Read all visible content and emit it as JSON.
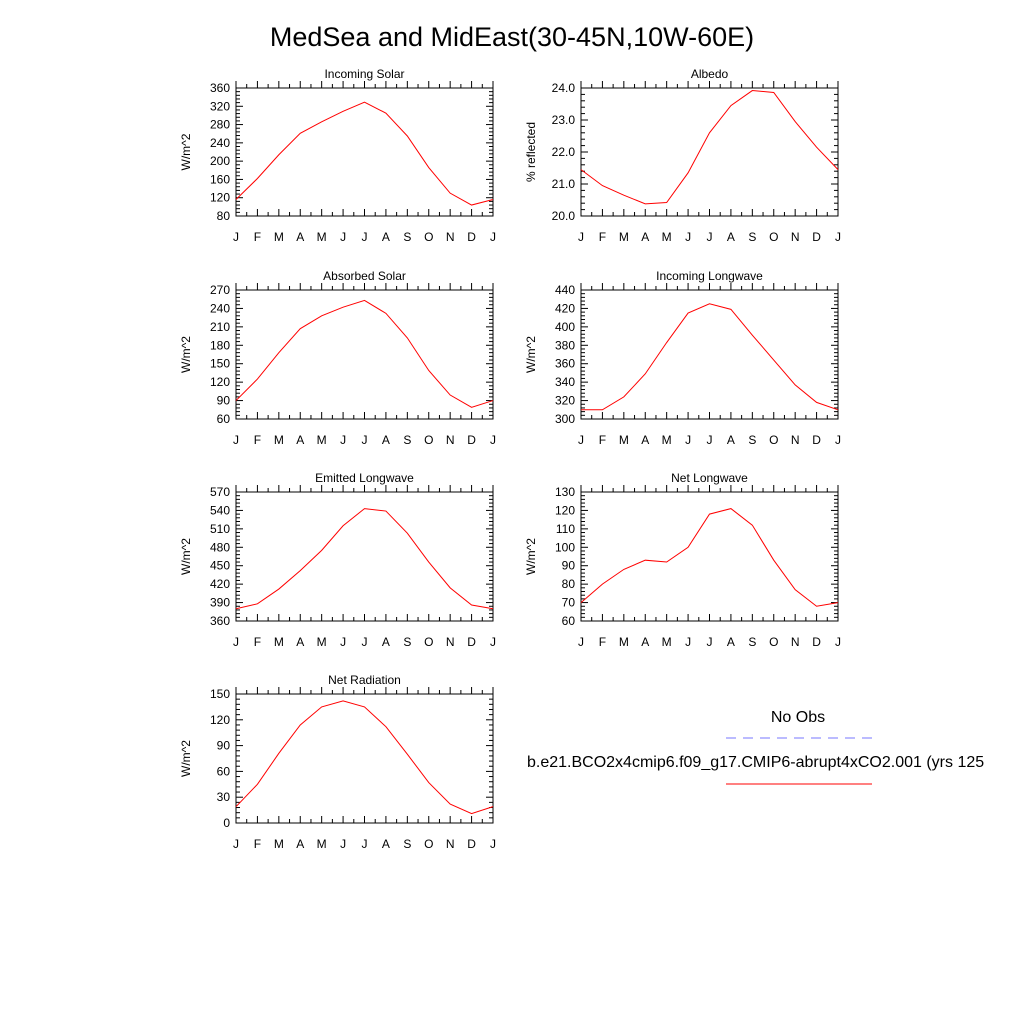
{
  "title": "MedSea and MidEast(30-45N,10W-60E)",
  "month_labels": [
    "J",
    "F",
    "M",
    "A",
    "M",
    "J",
    "J",
    "A",
    "S",
    "O",
    "N",
    "D",
    "J"
  ],
  "colors": {
    "model": "#ff0000",
    "obs": "#7777ff",
    "axis": "#000000"
  },
  "legend": {
    "obs_label": "No Obs",
    "model_label": "b.e21.BCO2x4cmip6.f09_g17.CMIP6-abrupt4xCO2.001 (yrs 125"
  },
  "chart_data": [
    {
      "type": "line",
      "title": "Incoming Solar",
      "ylabel": "W/m^2",
      "ylim": [
        80,
        360
      ],
      "yticks": [
        80,
        120,
        160,
        200,
        240,
        280,
        320,
        360
      ],
      "ytick_labels": [
        "80",
        "120",
        "160",
        "200",
        "240",
        "280",
        "320",
        "360"
      ],
      "x": [
        "J",
        "F",
        "M",
        "A",
        "M",
        "J",
        "J",
        "A",
        "S",
        "O",
        "N",
        "D",
        "J"
      ],
      "series": [
        {
          "values": [
            116,
            162,
            214,
            261,
            286,
            309,
            329,
            305,
            255,
            186,
            130,
            104,
            116
          ]
        }
      ]
    },
    {
      "type": "line",
      "title": "Albedo",
      "ylabel": "% reflected",
      "ylim": [
        20.0,
        24.0
      ],
      "yticks": [
        20.0,
        21.0,
        22.0,
        23.0,
        24.0
      ],
      "ytick_labels": [
        "20.0",
        "21.0",
        "22.0",
        "23.0",
        "24.0"
      ],
      "x": [
        "J",
        "F",
        "M",
        "A",
        "M",
        "J",
        "J",
        "A",
        "S",
        "O",
        "N",
        "D",
        "J"
      ],
      "series": [
        {
          "values": [
            21.45,
            20.95,
            20.65,
            20.38,
            20.42,
            21.35,
            22.6,
            23.45,
            23.92,
            23.86,
            22.95,
            22.15,
            21.45
          ]
        }
      ]
    },
    {
      "type": "line",
      "title": "Absorbed Solar",
      "ylabel": "W/m^2",
      "ylim": [
        60,
        270
      ],
      "yticks": [
        60,
        90,
        120,
        150,
        180,
        210,
        240,
        270
      ],
      "ytick_labels": [
        "60",
        "90",
        "120",
        "150",
        "180",
        "210",
        "240",
        "270"
      ],
      "x": [
        "J",
        "F",
        "M",
        "A",
        "M",
        "J",
        "J",
        "A",
        "S",
        "O",
        "N",
        "D",
        "J"
      ],
      "series": [
        {
          "values": [
            90,
            125,
            168,
            207,
            228,
            242,
            253,
            232,
            192,
            139,
            99,
            79,
            90
          ]
        }
      ]
    },
    {
      "type": "line",
      "title": "Incoming Longwave",
      "ylabel": "W/m^2",
      "ylim": [
        300,
        440
      ],
      "yticks": [
        300,
        320,
        340,
        360,
        380,
        400,
        420,
        440
      ],
      "ytick_labels": [
        "300",
        "320",
        "340",
        "360",
        "380",
        "400",
        "420",
        "440"
      ],
      "x": [
        "J",
        "F",
        "M",
        "A",
        "M",
        "J",
        "J",
        "A",
        "S",
        "O",
        "N",
        "D",
        "J"
      ],
      "series": [
        {
          "values": [
            310,
            310,
            324,
            349,
            383,
            415,
            425,
            419,
            391,
            364,
            337,
            318,
            310
          ]
        }
      ]
    },
    {
      "type": "line",
      "title": "Emitted Longwave",
      "ylabel": "W/m^2",
      "ylim": [
        360,
        570
      ],
      "yticks": [
        360,
        390,
        420,
        450,
        480,
        510,
        540,
        570
      ],
      "ytick_labels": [
        "360",
        "390",
        "420",
        "450",
        "480",
        "510",
        "540",
        "570"
      ],
      "x": [
        "J",
        "F",
        "M",
        "A",
        "M",
        "J",
        "J",
        "A",
        "S",
        "O",
        "N",
        "D",
        "J"
      ],
      "series": [
        {
          "values": [
            380,
            388,
            412,
            442,
            475,
            515,
            543,
            539,
            503,
            456,
            414,
            386,
            380
          ]
        }
      ]
    },
    {
      "type": "line",
      "title": "Net Longwave",
      "ylabel": "W/m^2",
      "ylim": [
        60,
        130
      ],
      "yticks": [
        60,
        70,
        80,
        90,
        100,
        110,
        120,
        130
      ],
      "ytick_labels": [
        "60",
        "70",
        "80",
        "90",
        "100",
        "110",
        "120",
        "130"
      ],
      "x": [
        "J",
        "F",
        "M",
        "A",
        "M",
        "J",
        "J",
        "A",
        "S",
        "O",
        "N",
        "D",
        "J"
      ],
      "series": [
        {
          "values": [
            70,
            80,
            88,
            93,
            92,
            100,
            118,
            121,
            112,
            93,
            77,
            68,
            70
          ]
        }
      ]
    },
    {
      "type": "line",
      "title": "Net Radiation",
      "ylabel": "W/m^2",
      "ylim": [
        0,
        150
      ],
      "yticks": [
        0,
        30,
        60,
        90,
        120,
        150
      ],
      "ytick_labels": [
        "0",
        "30",
        "60",
        "90",
        "120",
        "150"
      ],
      "x": [
        "J",
        "F",
        "M",
        "A",
        "M",
        "J",
        "J",
        "A",
        "S",
        "O",
        "N",
        "D",
        "J"
      ],
      "series": [
        {
          "values": [
            19,
            45,
            81,
            114,
            135,
            142,
            135,
            112,
            80,
            47,
            22,
            11,
            19
          ]
        }
      ]
    }
  ]
}
